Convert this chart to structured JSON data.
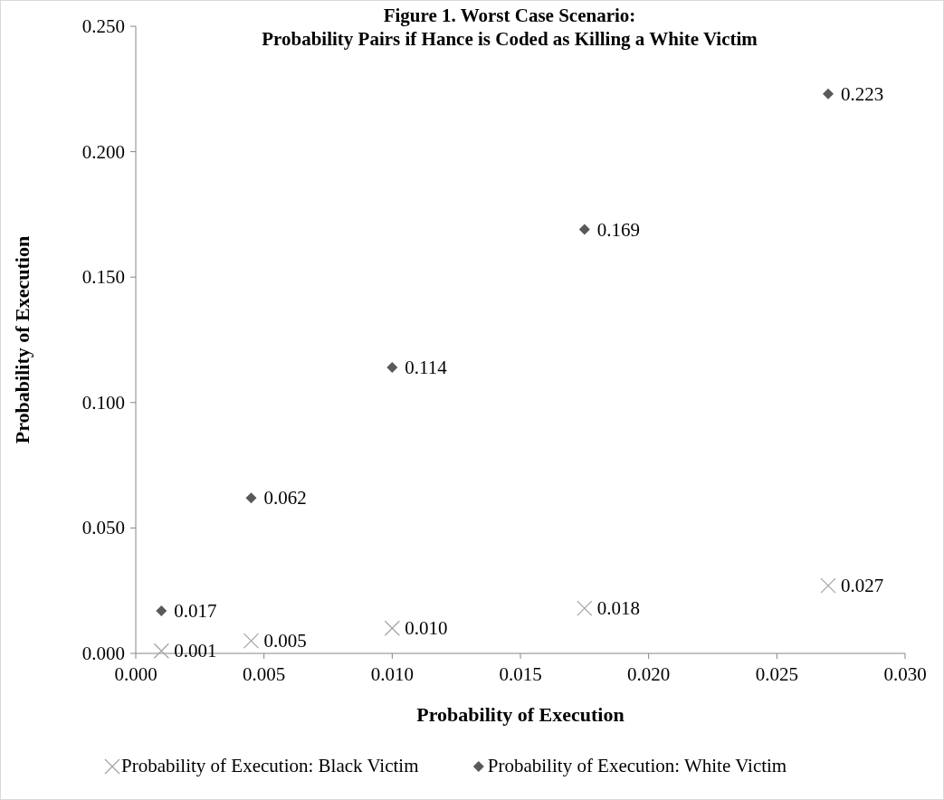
{
  "chart_data": {
    "type": "scatter",
    "title": "Figure 1. Worst Case Scenario:\nProbability Pairs if Hance is Coded as Killing a White Victim",
    "xlabel": "Probability of Execution",
    "ylabel": "Probability of Execution",
    "xlim": [
      0,
      0.03
    ],
    "ylim": [
      0,
      0.25
    ],
    "xticks": [
      {
        "value": 0,
        "label": "0.000"
      },
      {
        "value": 0.005,
        "label": "0.005"
      },
      {
        "value": 0.01,
        "label": "0.010"
      },
      {
        "value": 0.015,
        "label": "0.015"
      },
      {
        "value": 0.02,
        "label": "0.020"
      },
      {
        "value": 0.025,
        "label": "0.025"
      },
      {
        "value": 0.03,
        "label": "0.030"
      }
    ],
    "yticks": [
      {
        "value": 0,
        "label": "0.000"
      },
      {
        "value": 0.05,
        "label": "0.050"
      },
      {
        "value": 0.1,
        "label": "0.100"
      },
      {
        "value": 0.15,
        "label": "0.150"
      },
      {
        "value": 0.2,
        "label": "0.200"
      },
      {
        "value": 0.25,
        "label": "0.250"
      }
    ],
    "x": [
      0.001,
      0.0045,
      0.01,
      0.0175,
      0.027
    ],
    "grid": false,
    "legend": "bottom",
    "series": [
      {
        "name": "Probability of Execution: Black Victim",
        "color": "#a6a6a6",
        "marker": "cross",
        "values": [
          0.001,
          0.005,
          0.01,
          0.018,
          0.027
        ],
        "value_labels": [
          "0.001",
          "0.005",
          "0.010",
          "0.018",
          "0.027"
        ]
      },
      {
        "name": "Probability of Execution: White Victim",
        "color": "#595959",
        "marker": "diamond",
        "values": [
          0.017,
          0.062,
          0.114,
          0.169,
          0.223
        ],
        "value_labels": [
          "0.017",
          "0.062",
          "0.114",
          "0.169",
          "0.223"
        ]
      }
    ]
  }
}
